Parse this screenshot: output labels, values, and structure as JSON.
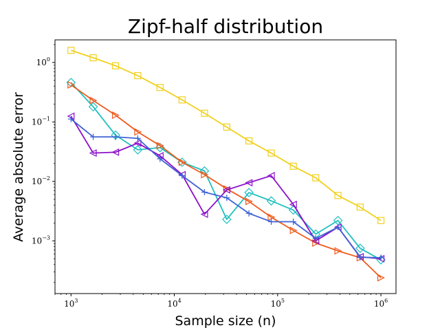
{
  "chart_data": {
    "type": "line",
    "title": "Zipf-half distribution",
    "xlabel": "Sample size (n)",
    "ylabel": "Average absolute error",
    "xscale": "log",
    "yscale": "log",
    "xlim": [
      700,
      1400000
    ],
    "ylim": [
      0.00013,
      2.4
    ],
    "grid": false,
    "legend": "none",
    "x_ticks": [
      {
        "value": 1000,
        "base": "10",
        "exp": "3"
      },
      {
        "value": 10000,
        "base": "10",
        "exp": "4"
      },
      {
        "value": 100000,
        "base": "10",
        "exp": "5"
      },
      {
        "value": 1000000,
        "base": "10",
        "exp": "6"
      }
    ],
    "y_ticks": [
      {
        "value": 0.001,
        "base": "10",
        "exp": "−3"
      },
      {
        "value": 0.01,
        "base": "10",
        "exp": "−2"
      },
      {
        "value": 0.1,
        "base": "10",
        "exp": "−1"
      },
      {
        "value": 1,
        "base": "10",
        "exp": "0"
      }
    ],
    "x": [
      1000,
      1640,
      2700,
      4430,
      7280,
      11900,
      19600,
      32200,
      52800,
      86800,
      142000,
      234000,
      384000,
      630000,
      1000000
    ],
    "series": [
      {
        "color": "#f2d01c",
        "marker": "square",
        "values": [
          1.6,
          1.2,
          0.88,
          0.6,
          0.38,
          0.235,
          0.14,
          0.082,
          0.048,
          0.03,
          0.018,
          0.0115,
          0.0058,
          0.0037,
          0.0022
        ]
      },
      {
        "color": "#1fbfbf",
        "marker": "diamond",
        "values": [
          0.46,
          0.18,
          0.06,
          0.034,
          0.037,
          0.021,
          0.015,
          0.0023,
          0.0065,
          0.0047,
          0.0033,
          0.0013,
          0.0022,
          0.00075,
          0.00048
        ]
      },
      {
        "color": "#ee5a1c",
        "marker": "triangle-right",
        "values": [
          0.42,
          0.23,
          0.13,
          0.068,
          0.04,
          0.021,
          0.013,
          0.0075,
          0.0046,
          0.0025,
          0.0015,
          0.00092,
          0.00068,
          0.00052,
          0.00024
        ]
      },
      {
        "color": "#8b0fc9",
        "marker": "triangle-left",
        "values": [
          0.125,
          0.03,
          0.031,
          0.044,
          0.027,
          0.013,
          0.0028,
          0.0072,
          0.0095,
          0.0125,
          0.0041,
          0.001,
          0.0017,
          0.00054,
          0.0005
        ]
      },
      {
        "color": "#3f63d6",
        "marker": "plus",
        "values": [
          0.112,
          0.056,
          0.056,
          0.053,
          0.024,
          0.0125,
          0.0066,
          0.0053,
          0.0029,
          0.0021,
          0.0021,
          0.0011,
          0.0017,
          0.00053,
          0.00052
        ]
      }
    ]
  }
}
